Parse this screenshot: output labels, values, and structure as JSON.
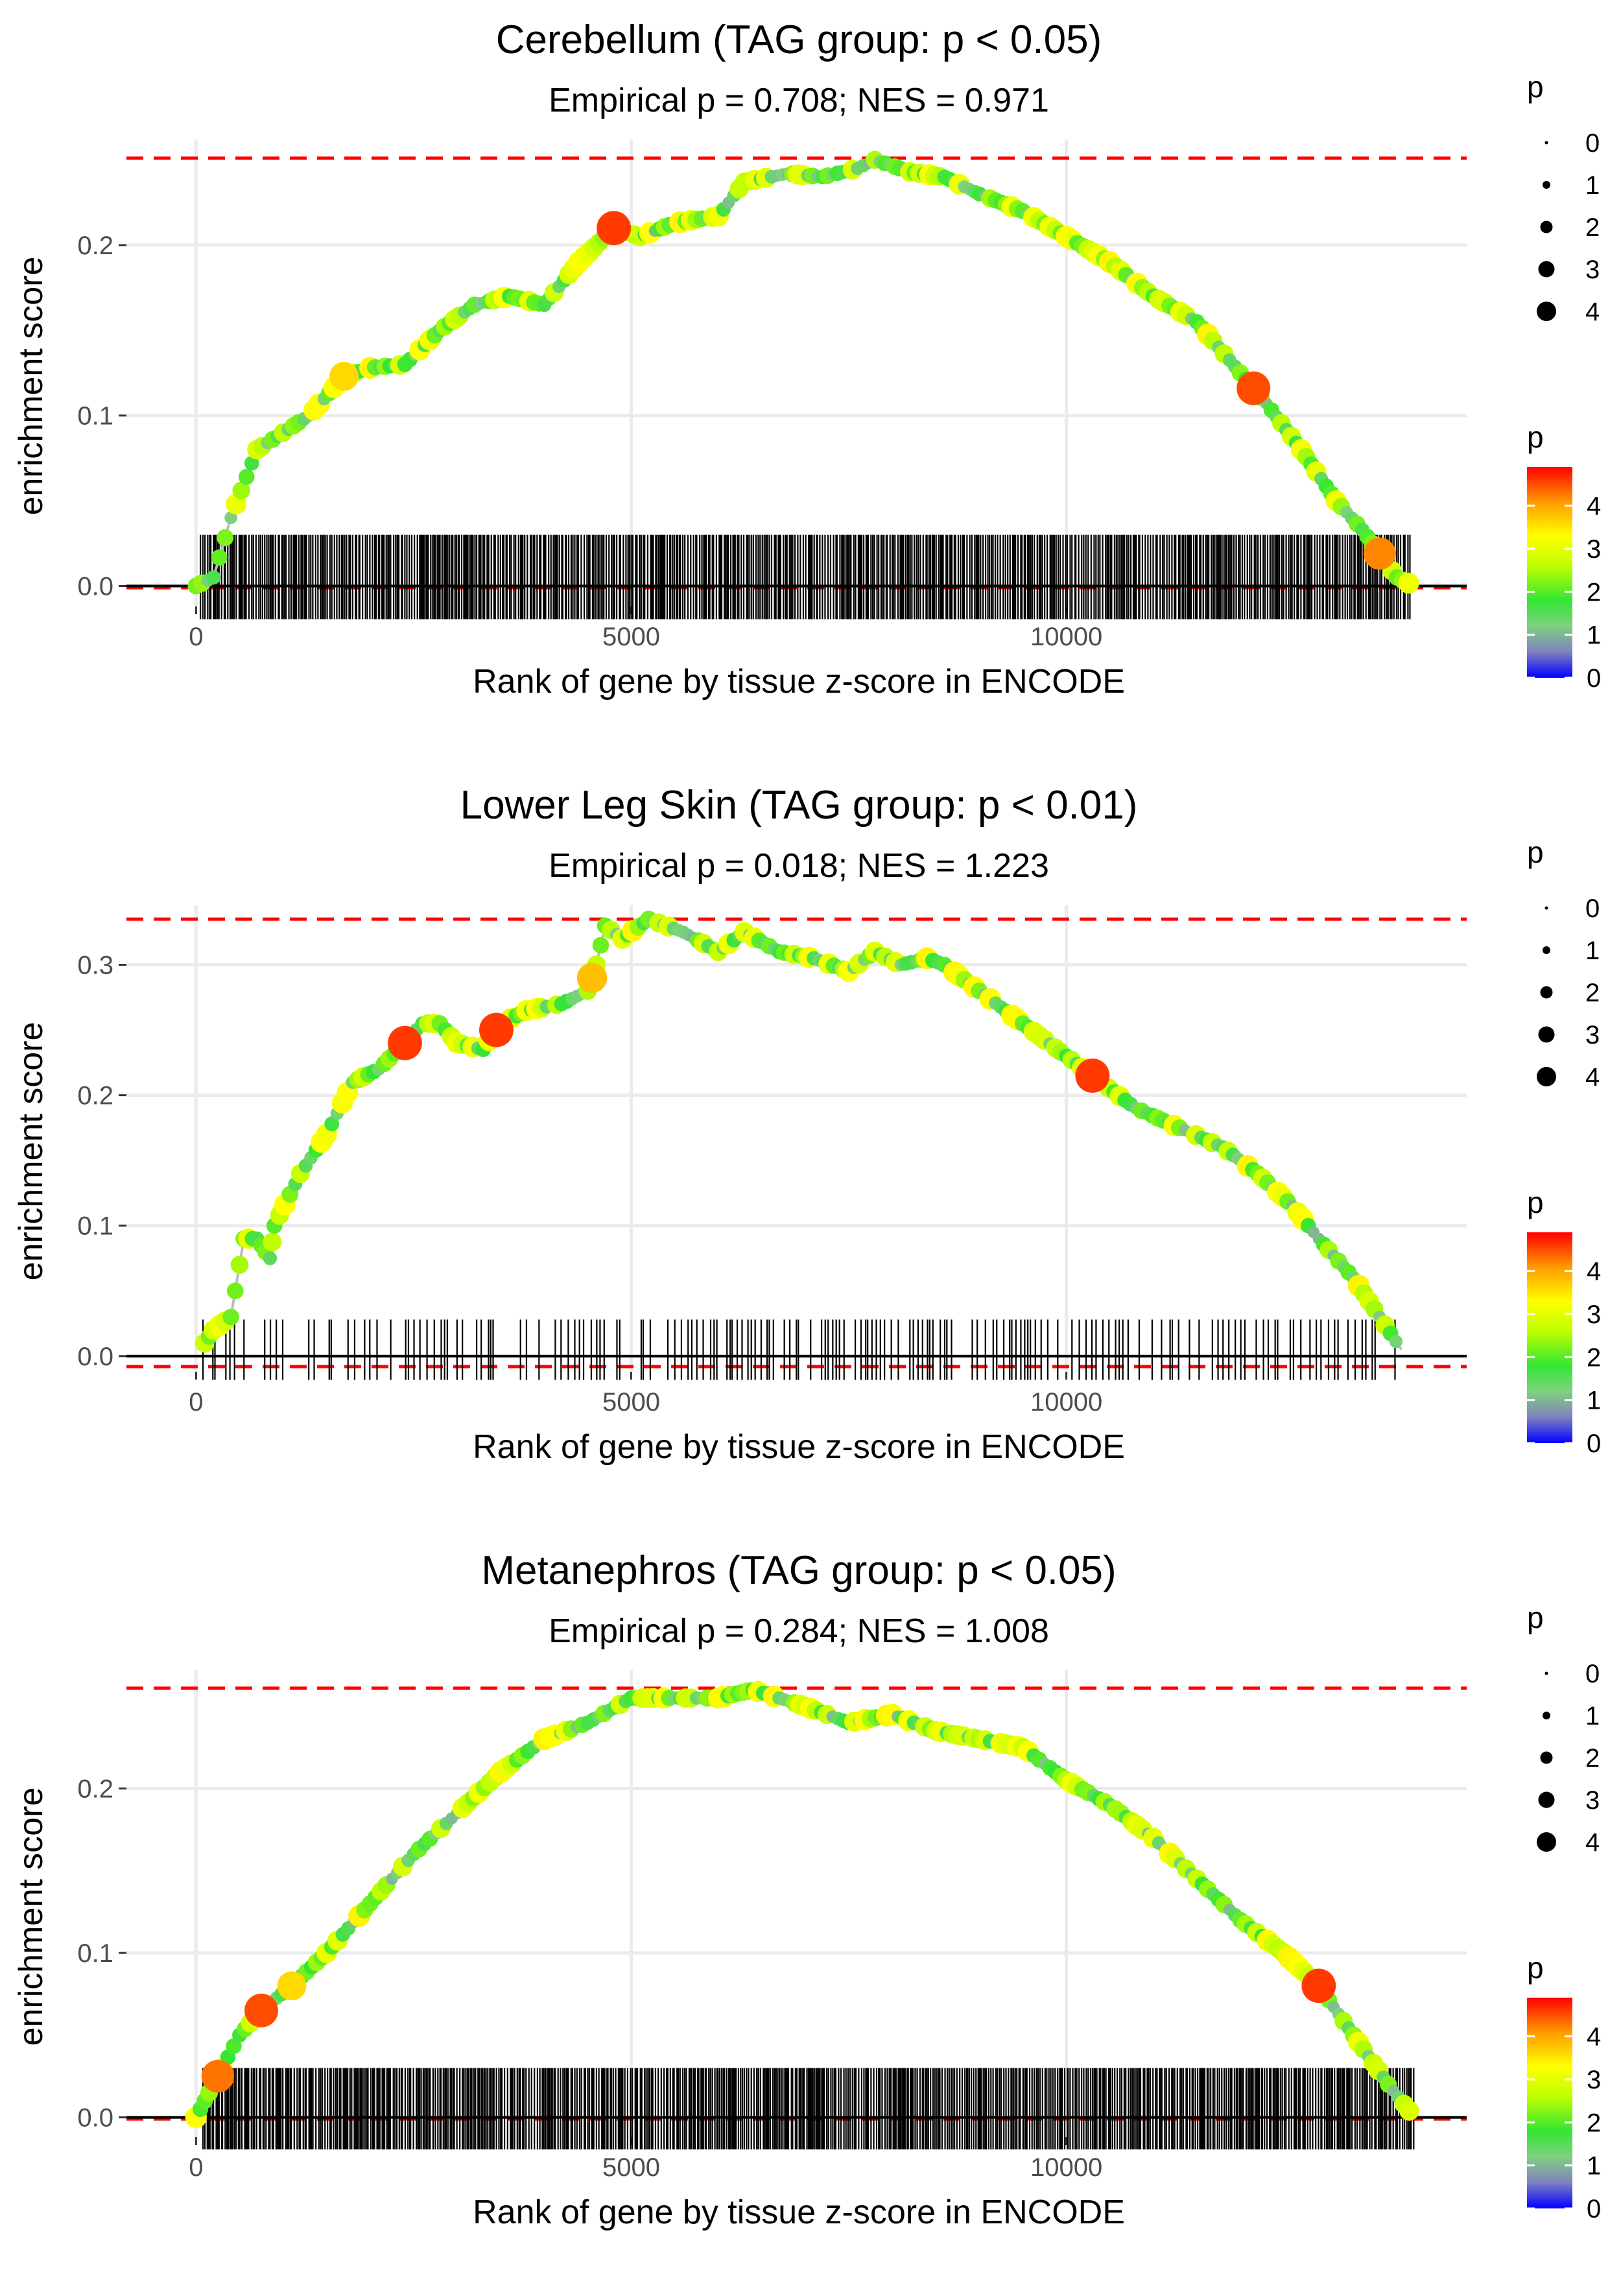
{
  "chart_data": [
    {
      "type": "scatter",
      "title": "Cerebellum (TAG group: p < 0.05)",
      "subtitle": "Empirical p = 0.708; NES = 0.971",
      "xlabel": "Rank of gene by tissue z-score in ENCODE",
      "ylabel": "enrichment score",
      "xlim": [
        -800,
        14600
      ],
      "ylim": [
        -0.012,
        0.262
      ],
      "xticks": [
        0,
        5000,
        10000
      ],
      "xtick_labels": [
        "0",
        "5000",
        "10000"
      ],
      "yticks": [
        0.0,
        0.1,
        0.2
      ],
      "ytick_labels": [
        "0.0",
        "0.1",
        "0.2"
      ],
      "max_es": 0.251,
      "min_es": -0.001,
      "rug_range": [
        50,
        13950
      ],
      "rug_density": 3,
      "rug_height": 0.03,
      "curve": [
        [
          0,
          0
        ],
        [
          200,
          0.005
        ],
        [
          400,
          0.04
        ],
        [
          700,
          0.08
        ],
        [
          1000,
          0.09
        ],
        [
          1300,
          0.1
        ],
        [
          1700,
          0.123
        ],
        [
          2000,
          0.128
        ],
        [
          2400,
          0.13
        ],
        [
          2800,
          0.15
        ],
        [
          3200,
          0.165
        ],
        [
          3600,
          0.17
        ],
        [
          4000,
          0.165
        ],
        [
          4400,
          0.19
        ],
        [
          4800,
          0.21
        ],
        [
          5100,
          0.205
        ],
        [
          5500,
          0.213
        ],
        [
          6000,
          0.217
        ],
        [
          6300,
          0.237
        ],
        [
          6800,
          0.242
        ],
        [
          7200,
          0.24
        ],
        [
          7600,
          0.245
        ],
        [
          7800,
          0.25
        ],
        [
          8200,
          0.243
        ],
        [
          8600,
          0.24
        ],
        [
          9000,
          0.23
        ],
        [
          9500,
          0.22
        ],
        [
          10000,
          0.205
        ],
        [
          10500,
          0.19
        ],
        [
          11000,
          0.17
        ],
        [
          11500,
          0.155
        ],
        [
          12000,
          0.125
        ],
        [
          12300,
          0.107
        ],
        [
          12700,
          0.08
        ],
        [
          13100,
          0.05
        ],
        [
          13400,
          0.033
        ],
        [
          13800,
          0.005
        ],
        [
          14000,
          0
        ]
      ],
      "highlights": [
        {
          "x": 1700,
          "p": 3.6
        },
        {
          "x": 4800,
          "p": 4.6
        },
        {
          "x": 12150,
          "p": 4.5
        },
        {
          "x": 13600,
          "p": 4.2
        }
      ],
      "legend_size": {
        "title": "p",
        "labels": [
          "0",
          "1",
          "2",
          "3",
          "4"
        ]
      },
      "legend_color": {
        "title": "p",
        "labels": [
          "4",
          "3",
          "2",
          "1",
          "0"
        ],
        "min": 0,
        "max": 4.9
      }
    },
    {
      "type": "scatter",
      "title": "Lower Leg Skin (TAG group: p < 0.01)",
      "subtitle": "Empirical p = 0.018; NES = 1.223",
      "xlabel": "Rank of gene by tissue z-score in ENCODE",
      "ylabel": "enrichment score",
      "xlim": [
        -800,
        14600
      ],
      "ylim": [
        -0.012,
        0.346
      ],
      "xticks": [
        0,
        5000,
        10000
      ],
      "xtick_labels": [
        "0",
        "5000",
        "10000"
      ],
      "yticks": [
        0.0,
        0.1,
        0.2,
        0.3
      ],
      "ytick_labels": [
        "0.0",
        "0.1",
        "0.2",
        "0.3"
      ],
      "max_es": 0.335,
      "min_es": -0.008,
      "rug_range": [
        80,
        13800
      ],
      "rug_density": 1,
      "rug_height": 0.028,
      "curve": [
        [
          100,
          0.01
        ],
        [
          200,
          0.02
        ],
        [
          400,
          0.03
        ],
        [
          550,
          0.09
        ],
        [
          700,
          0.09
        ],
        [
          850,
          0.075
        ],
        [
          900,
          0.1
        ],
        [
          1200,
          0.14
        ],
        [
          1500,
          0.17
        ],
        [
          1800,
          0.21
        ],
        [
          2100,
          0.22
        ],
        [
          2400,
          0.24
        ],
        [
          2600,
          0.255
        ],
        [
          2800,
          0.255
        ],
        [
          3000,
          0.24
        ],
        [
          3300,
          0.235
        ],
        [
          3500,
          0.255
        ],
        [
          3800,
          0.265
        ],
        [
          4200,
          0.27
        ],
        [
          4500,
          0.28
        ],
        [
          4600,
          0.3
        ],
        [
          4700,
          0.33
        ],
        [
          4900,
          0.32
        ],
        [
          5200,
          0.335
        ],
        [
          5600,
          0.325
        ],
        [
          6000,
          0.31
        ],
        [
          6300,
          0.325
        ],
        [
          6700,
          0.31
        ],
        [
          7100,
          0.305
        ],
        [
          7500,
          0.295
        ],
        [
          7800,
          0.31
        ],
        [
          8100,
          0.3
        ],
        [
          8400,
          0.305
        ],
        [
          8600,
          0.3
        ],
        [
          9000,
          0.28
        ],
        [
          9500,
          0.255
        ],
        [
          10000,
          0.23
        ],
        [
          10300,
          0.215
        ],
        [
          10800,
          0.19
        ],
        [
          11300,
          0.175
        ],
        [
          11800,
          0.16
        ],
        [
          12200,
          0.14
        ],
        [
          12600,
          0.115
        ],
        [
          12900,
          0.09
        ],
        [
          13300,
          0.06
        ],
        [
          13600,
          0.03
        ],
        [
          13850,
          0.005
        ]
      ],
      "highlights": [
        {
          "x": 2400,
          "p": 4.6
        },
        {
          "x": 3450,
          "p": 4.6
        },
        {
          "x": 4550,
          "p": 3.8
        },
        {
          "x": 10300,
          "p": 4.6
        }
      ],
      "legend_size": {
        "title": "p",
        "labels": [
          "0",
          "1",
          "2",
          "3",
          "4"
        ]
      },
      "legend_color": {
        "title": "p",
        "labels": [
          "4",
          "3",
          "2",
          "1",
          "0"
        ],
        "min": 0,
        "max": 4.9
      }
    },
    {
      "type": "scatter",
      "title": "Metanephros (TAG group: p < 0.05)",
      "subtitle": "Empirical p = 0.284; NES = 1.008",
      "xlabel": "Rank of gene by tissue z-score in ENCODE",
      "ylabel": "enrichment score",
      "xlim": [
        -800,
        14600
      ],
      "ylim": [
        -0.012,
        0.272
      ],
      "xticks": [
        0,
        5000,
        10000
      ],
      "xtick_labels": [
        "0",
        "5000",
        "10000"
      ],
      "yticks": [
        0.0,
        0.1,
        0.2
      ],
      "ytick_labels": [
        "0.0",
        "0.1",
        "0.2"
      ],
      "max_es": 0.261,
      "min_es": -0.001,
      "rug_range": [
        80,
        14000
      ],
      "rug_density": 3,
      "rug_height": 0.03,
      "curve": [
        [
          0,
          0
        ],
        [
          150,
          0.015
        ],
        [
          300,
          0.03
        ],
        [
          500,
          0.05
        ],
        [
          750,
          0.065
        ],
        [
          1100,
          0.08
        ],
        [
          1500,
          0.1
        ],
        [
          2000,
          0.13
        ],
        [
          2500,
          0.16
        ],
        [
          3000,
          0.185
        ],
        [
          3500,
          0.21
        ],
        [
          4000,
          0.23
        ],
        [
          4500,
          0.24
        ],
        [
          5000,
          0.255
        ],
        [
          5500,
          0.255
        ],
        [
          6000,
          0.255
        ],
        [
          6400,
          0.26
        ],
        [
          7000,
          0.25
        ],
        [
          7500,
          0.24
        ],
        [
          8000,
          0.245
        ],
        [
          8500,
          0.235
        ],
        [
          9000,
          0.23
        ],
        [
          9500,
          0.225
        ],
        [
          10000,
          0.205
        ],
        [
          10500,
          0.19
        ],
        [
          11000,
          0.17
        ],
        [
          11500,
          0.145
        ],
        [
          12000,
          0.12
        ],
        [
          12500,
          0.1
        ],
        [
          12900,
          0.08
        ],
        [
          13300,
          0.05
        ],
        [
          13700,
          0.02
        ],
        [
          14000,
          0
        ]
      ],
      "highlights": [
        {
          "x": 250,
          "p": 4.3
        },
        {
          "x": 750,
          "p": 4.5
        },
        {
          "x": 1100,
          "p": 3.6
        },
        {
          "x": 12900,
          "p": 4.6
        }
      ],
      "legend_size": {
        "title": "p",
        "labels": [
          "0",
          "1",
          "2",
          "3",
          "4"
        ]
      },
      "legend_color": {
        "title": "p",
        "labels": [
          "4",
          "3",
          "2",
          "1",
          "0"
        ],
        "min": 0,
        "max": 4.9
      }
    }
  ]
}
